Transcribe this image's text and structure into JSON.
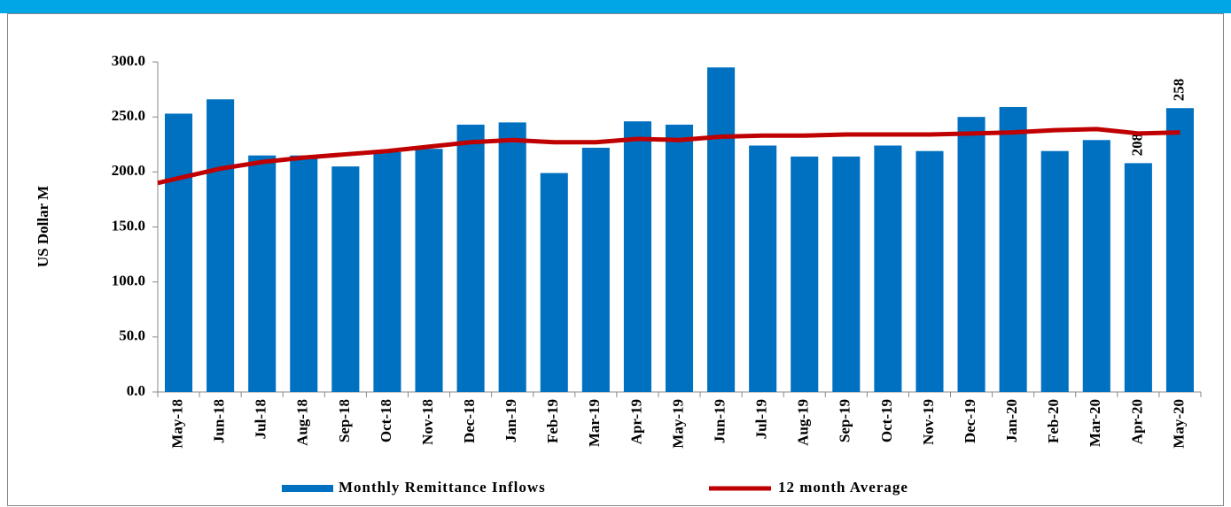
{
  "chart_data": {
    "type": "bar",
    "categories": [
      "May-18",
      "Jun-18",
      "Jul-18",
      "Aug-18",
      "Sep-18",
      "Oct-18",
      "Nov-18",
      "Dec-18",
      "Jan-19",
      "Feb-19",
      "Mar-19",
      "Apr-19",
      "May-19",
      "Jun-19",
      "Jul-19",
      "Aug-19",
      "Sep-19",
      "Oct-19",
      "Nov-19",
      "Dec-19",
      "Jan-20",
      "Feb-20",
      "Mar-20",
      "Apr-20",
      "May-20"
    ],
    "series": [
      {
        "name": "Monthly Remittance Inflows",
        "type": "bar",
        "color": "#0070c0",
        "values": [
          253,
          266,
          215,
          215,
          205,
          218,
          221,
          243,
          245,
          199,
          222,
          246,
          243,
          295,
          224,
          214,
          214,
          224,
          219,
          250,
          259,
          219,
          229,
          208,
          258
        ],
        "value_labels": [
          null,
          null,
          null,
          null,
          null,
          null,
          null,
          null,
          null,
          null,
          null,
          null,
          null,
          null,
          null,
          null,
          null,
          null,
          null,
          null,
          null,
          null,
          null,
          "208",
          "258"
        ]
      },
      {
        "name": "12 month Average",
        "type": "line",
        "color": "#c00000",
        "values": [
          190,
          203,
          209,
          213,
          216,
          219,
          223,
          227,
          229,
          227,
          227,
          230,
          229,
          232,
          233,
          233,
          234,
          234,
          234,
          235,
          236,
          238,
          239,
          235,
          236
        ]
      }
    ],
    "y_label": "US Dollar M",
    "ylim": [
      0,
      300
    ],
    "yticks": [
      {
        "value": 0,
        "label": "0.0"
      },
      {
        "value": 50,
        "label": "50.0"
      },
      {
        "value": 100,
        "label": "100.0"
      },
      {
        "value": 150,
        "label": "150.0"
      },
      {
        "value": 200,
        "label": "200.0"
      },
      {
        "value": 250,
        "label": "250.0"
      },
      {
        "value": 300,
        "label": "300.0"
      }
    ],
    "legend": "bottom"
  }
}
